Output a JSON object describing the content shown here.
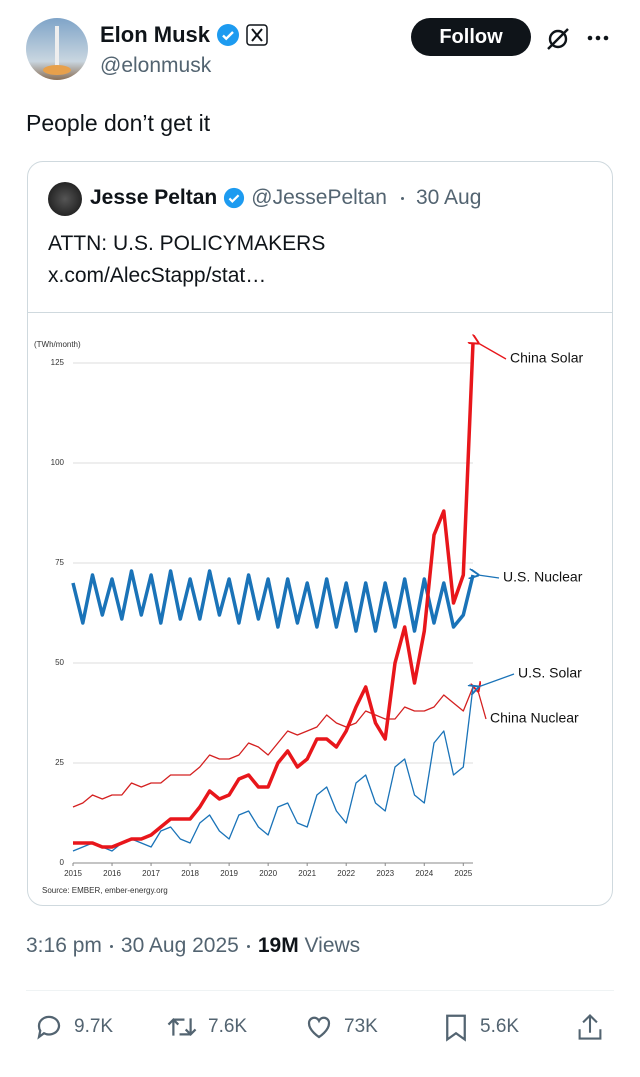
{
  "author": {
    "name": "Elon Musk",
    "handle": "@elonmusk"
  },
  "follow_button": "Follow",
  "text": "People don’t get it",
  "quote": {
    "name": "Jesse Peltan",
    "handle": "@JessePeltan",
    "date": "30 Aug",
    "lines": [
      "ATTN: U.S. POLICYMAKERS",
      "x.com/AlecStapp/stat…"
    ]
  },
  "chart_data": {
    "type": "line",
    "y_label": "(TWh/month)",
    "source": "Source: EMBER, ember-energy.org",
    "x": [
      2015,
      2015.25,
      2015.5,
      2015.75,
      2016,
      2016.25,
      2016.5,
      2016.75,
      2017,
      2017.25,
      2017.5,
      2017.75,
      2018,
      2018.25,
      2018.5,
      2018.75,
      2019,
      2019.25,
      2019.5,
      2019.75,
      2020,
      2020.25,
      2020.5,
      2020.75,
      2021,
      2021.25,
      2021.5,
      2021.75,
      2022,
      2022.25,
      2022.5,
      2022.75,
      2023,
      2023.25,
      2023.5,
      2023.75,
      2024,
      2024.25,
      2024.5,
      2024.75,
      2025,
      2025.25
    ],
    "xlim": [
      2015,
      2025.3
    ],
    "xticks": [
      2015,
      2016,
      2017,
      2018,
      2019,
      2020,
      2021,
      2022,
      2023,
      2024,
      2025
    ],
    "ylim": [
      0,
      130
    ],
    "yticks": [
      0,
      25,
      50,
      75,
      100,
      125
    ],
    "grid": true,
    "series": [
      {
        "name": "China Solar",
        "color": "#e8161b",
        "linewidth": 3.5,
        "values": [
          5,
          5,
          5,
          4,
          4,
          5,
          6,
          6,
          7,
          9,
          11,
          11,
          11,
          14,
          18,
          16,
          17,
          21,
          22,
          19,
          19,
          25,
          28,
          24,
          26,
          31,
          31,
          29,
          33,
          39,
          44,
          35,
          31,
          50,
          59,
          45,
          58,
          82,
          88,
          65,
          72,
          130
        ]
      },
      {
        "name": "U.S. Nuclear",
        "color": "#1a73b8",
        "linewidth": 3.5,
        "values": [
          70,
          60,
          72,
          62,
          71,
          61,
          73,
          62,
          72,
          60,
          73,
          61,
          71,
          61,
          73,
          62,
          71,
          60,
          72,
          61,
          71,
          59,
          71,
          60,
          70,
          59,
          71,
          59,
          70,
          58,
          70,
          58,
          70,
          59,
          71,
          58,
          71,
          60,
          70,
          59,
          62,
          72
        ]
      },
      {
        "name": "U.S. Solar",
        "color": "#1a73b8",
        "linewidth": 1.3,
        "values": [
          3,
          4,
          5,
          4,
          3,
          5,
          6,
          5,
          4,
          8,
          9,
          6,
          5,
          10,
          12,
          8,
          6,
          12,
          13,
          9,
          7,
          14,
          15,
          10,
          9,
          17,
          19,
          13,
          10,
          20,
          22,
          15,
          13,
          24,
          26,
          17,
          15,
          30,
          33,
          22,
          24,
          44
        ]
      },
      {
        "name": "China Nuclear",
        "color": "#d42020",
        "linewidth": 1.3,
        "values": [
          14,
          15,
          17,
          16,
          17,
          17,
          20,
          19,
          20,
          20,
          22,
          22,
          22,
          24,
          27,
          26,
          26,
          27,
          30,
          29,
          27,
          30,
          33,
          32,
          33,
          34,
          37,
          35,
          34,
          35,
          38,
          37,
          36,
          36,
          39,
          38,
          38,
          39,
          42,
          40,
          38,
          44
        ]
      }
    ]
  },
  "meta": {
    "time": "3:16 pm",
    "date": "30 Aug 2025",
    "views_count": "19M",
    "views_label": "Views"
  },
  "stats": {
    "replies": "9.7K",
    "reposts": "7.6K",
    "likes": "73K",
    "bookmarks": "5.6K"
  }
}
